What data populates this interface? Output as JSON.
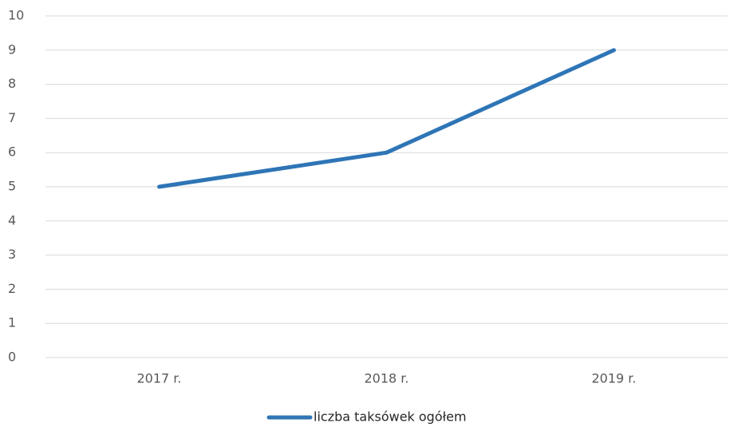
{
  "chart_data": {
    "type": "line",
    "categories": [
      "2017 r.",
      "2018 r.",
      "2019 r."
    ],
    "series": [
      {
        "name": "liczba taksówek ogółem",
        "color": "#2e75b6",
        "values": [
          5,
          6,
          9
        ]
      }
    ],
    "ylim": [
      0,
      10
    ],
    "yticks": [
      0,
      1,
      2,
      3,
      4,
      5,
      6,
      7,
      8,
      9,
      10
    ],
    "grid": true,
    "legend": "bottom"
  }
}
